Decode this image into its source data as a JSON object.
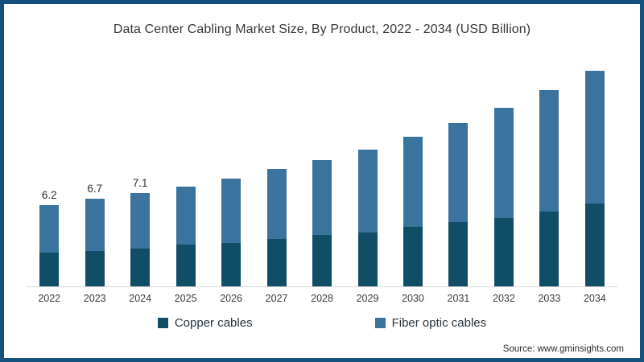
{
  "chart": {
    "title": "Data Center Cabling Market Size, By Product, 2022 - 2034 (USD Billion)",
    "source": "Source: www.gminsights.com"
  },
  "legend": [
    {
      "label": "Copper cables",
      "color": "#104e68"
    },
    {
      "label": "Fiber optic cables",
      "color": "#3a739d"
    }
  ],
  "chart_data": {
    "type": "bar",
    "stacked": true,
    "title": "Data Center Cabling Market Size, By Product, 2022 - 2034 (USD Billion)",
    "xlabel": "",
    "ylabel": "",
    "categories": [
      "2022",
      "2023",
      "2024",
      "2025",
      "2026",
      "2027",
      "2028",
      "2029",
      "2030",
      "2031",
      "2032",
      "2033",
      "2034"
    ],
    "series": [
      {
        "name": "Copper cables",
        "color": "#104e68",
        "values": [
          2.6,
          2.7,
          2.9,
          3.2,
          3.3,
          3.6,
          3.9,
          4.1,
          4.5,
          4.9,
          5.2,
          5.7,
          6.3
        ]
      },
      {
        "name": "Fiber optic cables",
        "color": "#3a739d",
        "values": [
          3.6,
          4.0,
          4.2,
          4.4,
          4.9,
          5.3,
          5.7,
          6.3,
          6.9,
          7.5,
          8.4,
          9.2,
          10.1
        ]
      }
    ],
    "totals": [
      6.2,
      6.7,
      7.1,
      7.6,
      8.2,
      8.9,
      9.6,
      10.4,
      11.4,
      12.4,
      13.6,
      14.9,
      16.4
    ],
    "total_labels": [
      "6.2",
      "6.7",
      "7.1",
      "",
      "",
      "",
      "",
      "",
      "",
      "",
      "",
      "",
      ""
    ],
    "ylim": [
      0,
      17.5
    ],
    "grid": false,
    "legend_position": "bottom"
  }
}
